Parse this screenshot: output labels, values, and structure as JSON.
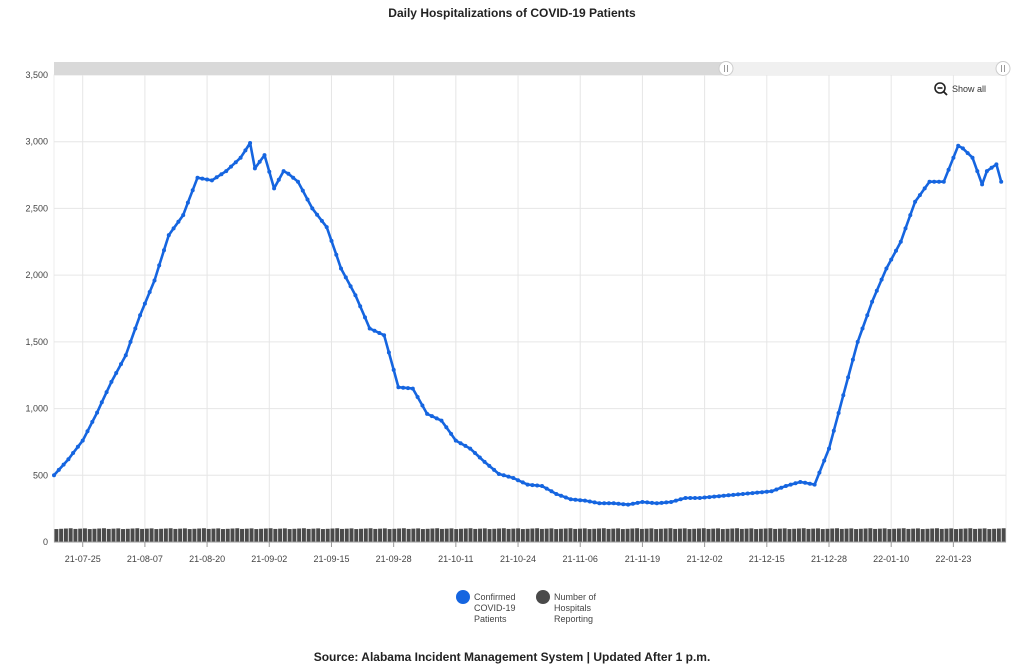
{
  "title": "Daily Hospitalizations of COVID-19 Patients",
  "source": "Source: Alabama Incident Management System | Updated After 1 p.m.",
  "controls": {
    "show_all_label": "Show all",
    "show_all_icon": "zoom-out-icon"
  },
  "colors": {
    "patients": "#1565e0",
    "hospitals": "#4a4a4a",
    "grid": "#e6e6e6",
    "slider": "#d9d9d9"
  },
  "chart_data": {
    "type": "line",
    "title": "Daily Hospitalizations of COVID-19 Patients",
    "xlabel": "",
    "ylabel": "",
    "ylim": [
      0,
      3500
    ],
    "yticks": [
      0,
      500,
      1000,
      1500,
      2000,
      2500,
      3000,
      3500
    ],
    "ytick_labels": [
      "0",
      "500",
      "1,000",
      "1,500",
      "2,000",
      "2,500",
      "3,000",
      "3,500"
    ],
    "x_start": "2021-07-19",
    "x_end": "2022-02-03",
    "xticks": [
      "2021-07-25",
      "2021-08-07",
      "2021-08-20",
      "2021-09-02",
      "2021-09-15",
      "2021-09-28",
      "2021-10-11",
      "2021-10-24",
      "2021-11-06",
      "2021-11-19",
      "2021-12-02",
      "2021-12-15",
      "2021-12-28",
      "2022-01-10",
      "2022-01-23"
    ],
    "xtick_labels": [
      "21-07-25",
      "21-08-07",
      "21-08-20",
      "21-09-02",
      "21-09-15",
      "21-09-28",
      "21-10-11",
      "21-10-24",
      "21-11-06",
      "21-11-19",
      "21-12-02",
      "21-12-15",
      "21-12-28",
      "22-01-10",
      "22-01-23"
    ],
    "grid": true,
    "legend_position": "bottom-center",
    "series": [
      {
        "name": "Confirmed COVID-19 Patients",
        "type": "line",
        "x": [
          "2021-07-19",
          "2021-07-22",
          "2021-07-25",
          "2021-07-28",
          "2021-07-31",
          "2021-08-03",
          "2021-08-06",
          "2021-08-09",
          "2021-08-12",
          "2021-08-15",
          "2021-08-18",
          "2021-08-21",
          "2021-08-24",
          "2021-08-27",
          "2021-08-29",
          "2021-08-30",
          "2021-09-01",
          "2021-09-03",
          "2021-09-05",
          "2021-09-06",
          "2021-09-08",
          "2021-09-11",
          "2021-09-14",
          "2021-09-17",
          "2021-09-20",
          "2021-09-23",
          "2021-09-26",
          "2021-09-29",
          "2021-10-02",
          "2021-10-05",
          "2021-10-08",
          "2021-10-11",
          "2021-10-14",
          "2021-10-17",
          "2021-10-20",
          "2021-10-23",
          "2021-10-26",
          "2021-10-29",
          "2021-11-01",
          "2021-11-04",
          "2021-11-07",
          "2021-11-10",
          "2021-11-13",
          "2021-11-16",
          "2021-11-19",
          "2021-11-22",
          "2021-11-25",
          "2021-11-28",
          "2021-12-01",
          "2021-12-04",
          "2021-12-07",
          "2021-12-10",
          "2021-12-13",
          "2021-12-16",
          "2021-12-19",
          "2021-12-22",
          "2021-12-25",
          "2021-12-28",
          "2021-12-31",
          "2022-01-03",
          "2022-01-06",
          "2022-01-09",
          "2022-01-12",
          "2022-01-15",
          "2022-01-18",
          "2022-01-21",
          "2022-01-24",
          "2022-01-25",
          "2022-01-27",
          "2022-01-29",
          "2022-01-30",
          "2022-02-01",
          "2022-02-02"
        ],
        "values": [
          500,
          620,
          760,
          970,
          1200,
          1400,
          1700,
          1960,
          2300,
          2450,
          2730,
          2710,
          2780,
          2880,
          2990,
          2800,
          2900,
          2650,
          2780,
          2760,
          2700,
          2500,
          2360,
          2050,
          1850,
          1600,
          1550,
          1160,
          1150,
          960,
          910,
          760,
          700,
          600,
          510,
          480,
          430,
          420,
          360,
          320,
          310,
          290,
          290,
          280,
          300,
          290,
          300,
          330,
          330,
          340,
          350,
          360,
          370,
          380,
          420,
          450,
          430,
          700,
          1100,
          1500,
          1800,
          2050,
          2250,
          2550,
          2700,
          2700,
          2970,
          2950,
          2880,
          2680,
          2780,
          2830,
          2700
        ]
      },
      {
        "name": "Number of Hospitals Reporting",
        "type": "bar",
        "value": 100
      }
    ]
  }
}
